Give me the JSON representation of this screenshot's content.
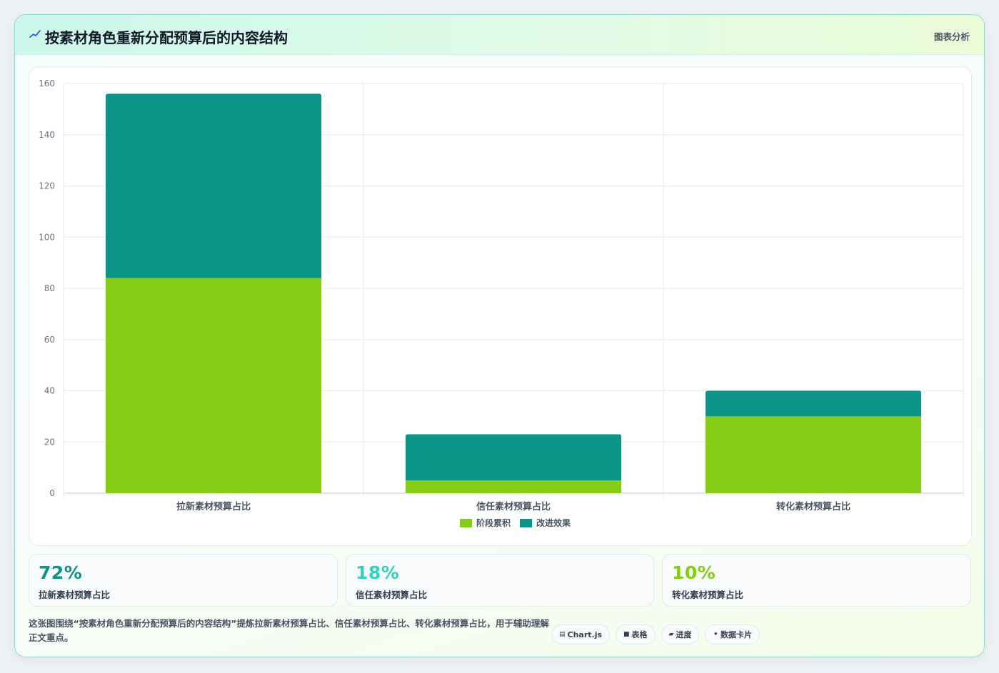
{
  "header": {
    "title": "按素材角色重新分配预算后的内容结构",
    "tag": "图表分析"
  },
  "chart_data": {
    "type": "bar",
    "stacked": true,
    "categories": [
      "拉新素材预算占比",
      "信任素材预算占比",
      "转化素材预算占比"
    ],
    "series": [
      {
        "name": "阶段累积",
        "values": [
          84,
          5,
          30
        ],
        "color": "#84cc16"
      },
      {
        "name": "改进效果",
        "values": [
          72,
          18,
          10
        ],
        "color": "#0d9488"
      }
    ],
    "ylim": [
      0,
      160
    ],
    "yticks": [
      "0",
      "20",
      "40",
      "60",
      "80",
      "100",
      "120",
      "140",
      "160"
    ],
    "grid": true,
    "legend": "bottom-center"
  },
  "stats": [
    {
      "value": "72%",
      "label": "拉新素材预算占比",
      "color": "#0d9488"
    },
    {
      "value": "18%",
      "label": "信任素材预算占比",
      "color": "#2dd4bf"
    },
    {
      "value": "10%",
      "label": "转化素材预算占比",
      "color": "#84cc16"
    }
  ],
  "summary": "这张图围绕“按素材角色重新分配预算后的内容结构”提炼拉新素材预算占比、信任素材预算占比、转化素材预算占比，用于辅助理解正文重点。",
  "chips": [
    {
      "icon": "chart-icon",
      "glyph": "▤",
      "label": "Chart.js"
    },
    {
      "icon": "table-icon",
      "glyph": "■",
      "label": "表格"
    },
    {
      "icon": "progress-icon",
      "glyph": "▰",
      "label": "进度"
    },
    {
      "icon": "sparkle-icon",
      "glyph": "✦",
      "label": "数据卡片"
    }
  ]
}
